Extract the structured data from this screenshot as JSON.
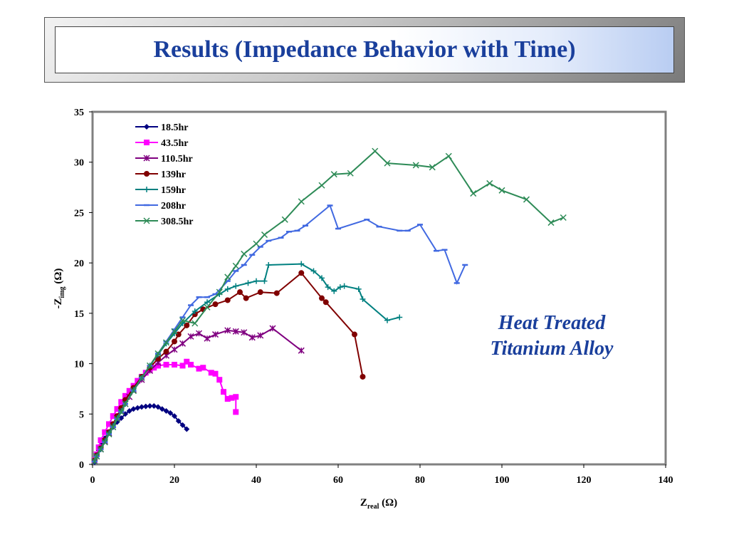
{
  "slide": {
    "title": "Results (Impedance Behavior with Time)"
  },
  "chart_data": {
    "type": "line",
    "x_label": {
      "prefix": "Z",
      "sub": "real",
      "suffix": " (Ω)"
    },
    "y_label": {
      "prefix": "-Z",
      "sub": "img",
      "suffix": " (Ω)"
    },
    "xlim": [
      0,
      140
    ],
    "ylim": [
      0,
      35
    ],
    "x_ticks": [
      0,
      20,
      40,
      60,
      80,
      100,
      120,
      140
    ],
    "y_ticks": [
      0,
      5,
      10,
      15,
      20,
      25,
      30,
      35
    ],
    "grid": false,
    "legend_position": "top-left",
    "annotation": [
      "Heat Treated",
      "Titanium Alloy"
    ],
    "series": [
      {
        "name": "18.5hr",
        "color": "#000080",
        "marker": "diamond",
        "points": [
          [
            0.5,
            0.2
          ],
          [
            1,
            0.8
          ],
          [
            1.5,
            1.4
          ],
          [
            2,
            1.9
          ],
          [
            3,
            2.6
          ],
          [
            4,
            3.2
          ],
          [
            5,
            3.7
          ],
          [
            6,
            4.2
          ],
          [
            7,
            4.6
          ],
          [
            8,
            5.0
          ],
          [
            9,
            5.3
          ],
          [
            10,
            5.5
          ],
          [
            11,
            5.6
          ],
          [
            12,
            5.7
          ],
          [
            13,
            5.75
          ],
          [
            14,
            5.8
          ],
          [
            15,
            5.8
          ],
          [
            16,
            5.7
          ],
          [
            17,
            5.5
          ],
          [
            18,
            5.3
          ],
          [
            19,
            5.1
          ],
          [
            20,
            4.8
          ],
          [
            21,
            4.3
          ],
          [
            22,
            3.9
          ],
          [
            23,
            3.5
          ]
        ]
      },
      {
        "name": "43.5hr",
        "color": "#ff00ff",
        "marker": "square",
        "points": [
          [
            0.5,
            0.4
          ],
          [
            1,
            1.0
          ],
          [
            1.5,
            1.7
          ],
          [
            2,
            2.4
          ],
          [
            3,
            3.2
          ],
          [
            4,
            4.0
          ],
          [
            5,
            4.8
          ],
          [
            6,
            5.5
          ],
          [
            7,
            6.2
          ],
          [
            8,
            6.8
          ],
          [
            9,
            7.3
          ],
          [
            10,
            7.8
          ],
          [
            11,
            8.3
          ],
          [
            12,
            8.7
          ],
          [
            13,
            9.1
          ],
          [
            14,
            9.4
          ],
          [
            15,
            9.6
          ],
          [
            16,
            9.8
          ],
          [
            18,
            9.9
          ],
          [
            20,
            9.9
          ],
          [
            22,
            9.8
          ],
          [
            23,
            10.2
          ],
          [
            24,
            9.9
          ],
          [
            26,
            9.5
          ],
          [
            27,
            9.6
          ],
          [
            29,
            9.1
          ],
          [
            30,
            9.0
          ],
          [
            31,
            8.4
          ],
          [
            32,
            7.2
          ],
          [
            33,
            6.5
          ],
          [
            34,
            6.6
          ],
          [
            35,
            6.7
          ],
          [
            35,
            5.2
          ]
        ]
      },
      {
        "name": "110.5hr",
        "color": "#800080",
        "marker": "star",
        "points": [
          [
            0.5,
            0.3
          ],
          [
            1,
            0.8
          ],
          [
            2,
            1.5
          ],
          [
            3,
            2.3
          ],
          [
            4,
            3.1
          ],
          [
            5,
            3.9
          ],
          [
            6,
            4.6
          ],
          [
            7,
            5.3
          ],
          [
            8,
            6.0
          ],
          [
            9,
            6.7
          ],
          [
            10,
            7.4
          ],
          [
            12,
            8.4
          ],
          [
            14,
            9.3
          ],
          [
            16,
            10.1
          ],
          [
            18,
            10.8
          ],
          [
            20,
            11.4
          ],
          [
            22,
            12.0
          ],
          [
            24,
            12.7
          ],
          [
            26,
            13.0
          ],
          [
            28,
            12.5
          ],
          [
            30,
            12.9
          ],
          [
            33,
            13.3
          ],
          [
            35,
            13.2
          ],
          [
            37,
            13.1
          ],
          [
            39,
            12.6
          ],
          [
            41,
            12.8
          ],
          [
            44,
            13.5
          ],
          [
            51,
            11.3
          ]
        ]
      },
      {
        "name": "139hr",
        "color": "#800000",
        "marker": "circle",
        "points": [
          [
            0.5,
            0.4
          ],
          [
            1,
            0.9
          ],
          [
            2,
            1.6
          ],
          [
            3,
            2.4
          ],
          [
            4,
            3.2
          ],
          [
            5,
            4.0
          ],
          [
            6,
            4.8
          ],
          [
            7,
            5.6
          ],
          [
            8,
            6.4
          ],
          [
            10,
            7.6
          ],
          [
            12,
            8.7
          ],
          [
            14,
            9.6
          ],
          [
            16,
            10.5
          ],
          [
            18,
            11.2
          ],
          [
            20,
            12.2
          ],
          [
            21,
            12.9
          ],
          [
            23,
            13.8
          ],
          [
            25,
            14.9
          ],
          [
            27,
            15.4
          ],
          [
            30,
            15.9
          ],
          [
            33,
            16.3
          ],
          [
            36,
            17.1
          ],
          [
            37.5,
            16.5
          ],
          [
            41,
            17.1
          ],
          [
            45,
            17.0
          ],
          [
            51,
            19.0
          ],
          [
            56,
            16.5
          ],
          [
            57,
            16.1
          ],
          [
            64,
            12.9
          ],
          [
            66,
            8.7
          ]
        ]
      },
      {
        "name": "159hr",
        "color": "#008080",
        "marker": "plus",
        "points": [
          [
            0.5,
            0.3
          ],
          [
            1,
            0.8
          ],
          [
            2,
            1.5
          ],
          [
            3,
            2.3
          ],
          [
            4,
            3.1
          ],
          [
            5,
            3.8
          ],
          [
            6,
            4.6
          ],
          [
            7,
            5.3
          ],
          [
            8,
            6.0
          ],
          [
            10,
            7.4
          ],
          [
            12,
            8.6
          ],
          [
            14,
            9.8
          ],
          [
            16,
            10.9
          ],
          [
            18,
            12.0
          ],
          [
            20,
            13.0
          ],
          [
            22,
            14.0
          ],
          [
            25,
            15.2
          ],
          [
            28,
            16.1
          ],
          [
            31,
            16.9
          ],
          [
            33,
            17.4
          ],
          [
            35,
            17.7
          ],
          [
            38,
            18.0
          ],
          [
            40,
            18.2
          ],
          [
            42,
            18.2
          ],
          [
            43,
            19.8
          ],
          [
            51,
            19.9
          ],
          [
            54,
            19.2
          ],
          [
            56,
            18.5
          ],
          [
            57.5,
            17.6
          ],
          [
            59,
            17.2
          ],
          [
            60.5,
            17.6
          ],
          [
            61.5,
            17.7
          ],
          [
            65,
            17.4
          ],
          [
            66,
            16.4
          ],
          [
            72,
            14.3
          ],
          [
            75,
            14.6
          ]
        ]
      },
      {
        "name": "208hr",
        "color": "#4169e1",
        "marker": "dash",
        "points": [
          [
            0.5,
            0.3
          ],
          [
            1,
            0.8
          ],
          [
            2,
            1.5
          ],
          [
            3,
            2.2
          ],
          [
            4,
            3.0
          ],
          [
            5,
            3.7
          ],
          [
            6,
            4.5
          ],
          [
            7,
            5.2
          ],
          [
            8,
            6.0
          ],
          [
            10,
            7.3
          ],
          [
            12,
            8.6
          ],
          [
            14,
            9.8
          ],
          [
            16,
            11.0
          ],
          [
            18,
            12.2
          ],
          [
            20,
            13.4
          ],
          [
            22,
            14.6
          ],
          [
            24,
            15.8
          ],
          [
            26,
            16.6
          ],
          [
            28,
            16.6
          ],
          [
            30,
            16.9
          ],
          [
            33,
            18.2
          ],
          [
            35,
            19.2
          ],
          [
            37,
            19.8
          ],
          [
            39,
            20.8
          ],
          [
            41,
            21.6
          ],
          [
            43,
            22.2
          ],
          [
            46,
            22.5
          ],
          [
            48,
            23.1
          ],
          [
            50,
            23.2
          ],
          [
            52,
            23.7
          ],
          [
            58,
            25.7
          ],
          [
            60,
            23.4
          ],
          [
            67,
            24.3
          ],
          [
            70,
            23.6
          ],
          [
            75,
            23.2
          ],
          [
            77,
            23.2
          ],
          [
            80,
            23.8
          ],
          [
            84,
            21.2
          ],
          [
            86,
            21.3
          ],
          [
            89,
            18.0
          ],
          [
            91,
            19.8
          ]
        ]
      },
      {
        "name": "308.5hr",
        "color": "#2e8b57",
        "marker": "x",
        "points": [
          [
            0.5,
            0.3
          ],
          [
            1,
            0.8
          ],
          [
            2,
            1.5
          ],
          [
            3,
            2.2
          ],
          [
            4,
            3.0
          ],
          [
            5,
            3.7
          ],
          [
            6,
            4.5
          ],
          [
            7,
            5.2
          ],
          [
            8,
            6.0
          ],
          [
            10,
            7.3
          ],
          [
            12,
            8.6
          ],
          [
            14,
            9.8
          ],
          [
            16,
            11.0
          ],
          [
            18,
            12.1
          ],
          [
            20,
            13.2
          ],
          [
            22,
            14.3
          ],
          [
            25,
            14.0
          ],
          [
            28,
            15.6
          ],
          [
            31,
            17.1
          ],
          [
            33,
            18.6
          ],
          [
            35,
            19.7
          ],
          [
            37,
            20.9
          ],
          [
            40,
            21.9
          ],
          [
            42,
            22.8
          ],
          [
            47,
            24.3
          ],
          [
            51,
            26.1
          ],
          [
            56,
            27.7
          ],
          [
            59,
            28.8
          ],
          [
            63,
            28.9
          ],
          [
            69,
            31.1
          ],
          [
            72,
            29.9
          ],
          [
            79,
            29.7
          ],
          [
            83,
            29.5
          ],
          [
            87,
            30.6
          ],
          [
            93,
            26.9
          ],
          [
            97,
            27.9
          ],
          [
            100,
            27.2
          ],
          [
            106,
            26.3
          ],
          [
            112,
            24.0
          ],
          [
            115,
            24.5
          ]
        ]
      }
    ]
  }
}
